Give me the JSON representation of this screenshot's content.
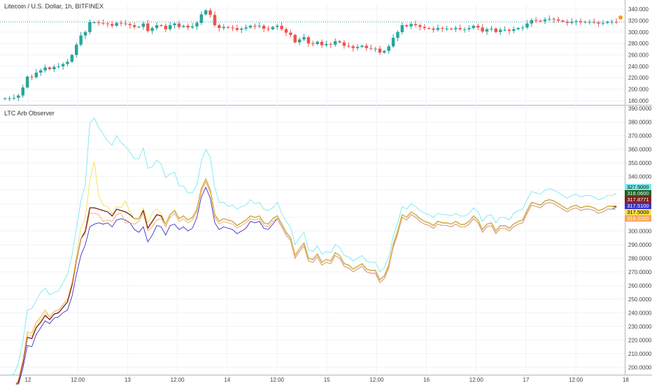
{
  "top_title": "Litecoin / U.S. Dollar, 1h, BITFINEX",
  "indicator_title": "LTC Arb Observer",
  "colors": {
    "up": "#26a69a",
    "down": "#ef5350",
    "bg": "#ffffff",
    "grid": "#f0f3fa",
    "axis_text": "#444444",
    "dot": "#ff9800"
  },
  "chart_data": [
    {
      "type": "candlestick",
      "title": "Litecoin / U.S. Dollar, 1h, BITFINEX",
      "ylim": [
        175,
        350
      ],
      "y_ticks": [
        "340.000",
        "320.000",
        "300.000",
        "280.000",
        "260.000",
        "240.000",
        "220.000",
        "200.000",
        "180.000"
      ],
      "price_line": 317.5,
      "close": [
        184,
        184,
        185,
        189,
        203,
        222,
        221,
        229,
        233,
        238,
        235,
        239,
        240,
        244,
        248,
        260,
        278,
        294,
        300,
        317,
        317,
        316,
        315,
        314,
        311,
        316,
        315,
        314,
        312,
        309,
        309,
        315,
        302,
        307,
        312,
        311,
        305,
        312,
        315,
        309,
        311,
        308,
        310,
        316,
        331,
        338,
        330,
        312,
        307,
        309,
        308,
        307,
        304,
        306,
        308,
        311,
        310,
        311,
        306,
        305,
        309,
        311,
        305,
        299,
        295,
        282,
        287,
        291,
        280,
        279,
        283,
        277,
        279,
        278,
        284,
        282,
        276,
        275,
        272,
        274,
        276,
        272,
        271,
        271,
        264,
        267,
        275,
        290,
        300,
        312,
        310,
        314,
        312,
        309,
        307,
        306,
        304,
        307,
        306,
        306,
        305,
        307,
        305,
        305,
        307,
        311,
        308,
        301,
        305,
        306,
        300,
        304,
        304,
        302,
        305,
        307,
        308,
        315,
        321,
        320,
        319,
        322,
        323,
        322,
        320,
        318,
        316,
        318,
        319,
        317,
        318,
        318,
        317,
        315,
        316,
        318,
        318,
        317.5
      ]
    },
    {
      "type": "line",
      "title": "LTC Arb Observer",
      "ylim": [
        195,
        390
      ],
      "y_ticks": [
        "390.0000",
        "380.0000",
        "370.0000",
        "360.0000",
        "350.0000",
        "340.0000",
        "330.0000",
        "320.0000",
        "310.0000",
        "300.0000",
        "290.0000",
        "280.0000",
        "270.0000",
        "260.0000",
        "250.0000",
        "240.0000",
        "230.0000",
        "220.0000",
        "210.0000",
        "200.0000"
      ],
      "last_values": [
        "327.5000",
        "318.0600",
        "317.8771",
        "317.5100",
        "317.5000",
        "316.2200"
      ],
      "series": [
        {
          "color": "#7ce8ee",
          "offsets": [
            10,
            10,
            10,
            14,
            16,
            20,
            22,
            20,
            22,
            20,
            18,
            16,
            16,
            18,
            20,
            22,
            24,
            28,
            34,
            62,
            66,
            60,
            56,
            52,
            52,
            54,
            50,
            48,
            46,
            44,
            44,
            46,
            44,
            40,
            40,
            38,
            34,
            30,
            28,
            24,
            22,
            20,
            18,
            18,
            20,
            22,
            24,
            20,
            14,
            12,
            10,
            12,
            12,
            12,
            11,
            12,
            10,
            10,
            10,
            10,
            8,
            10,
            8,
            8,
            8,
            8,
            8,
            8,
            6,
            6,
            6,
            6,
            6,
            6,
            6,
            6,
            6,
            6,
            6,
            6,
            6,
            6,
            6,
            6,
            6,
            6,
            6,
            6,
            6,
            6,
            6,
            6,
            6,
            6,
            6,
            6,
            6,
            6,
            6,
            6,
            6,
            6,
            6,
            6,
            6,
            6,
            6,
            6,
            6,
            6,
            6,
            6,
            6,
            6,
            8,
            8,
            8,
            8,
            8,
            8,
            8,
            8,
            8,
            8,
            8,
            8,
            8,
            8,
            8,
            8,
            8,
            8,
            8,
            8,
            8,
            8,
            8,
            10
          ]
        },
        {
          "color": "#1e5e1e",
          "offsets": [
            0,
            0,
            0,
            0,
            0,
            0,
            0,
            0,
            0,
            0,
            0,
            0,
            0,
            0,
            0,
            0,
            0,
            0,
            0,
            0,
            0,
            0,
            0,
            0,
            0,
            0,
            0,
            0,
            0,
            0,
            0,
            0,
            0,
            0,
            0,
            0,
            0,
            0,
            0,
            0,
            0,
            0,
            0,
            0,
            0,
            0,
            0,
            0,
            0,
            0,
            0,
            0,
            0,
            0,
            0,
            0,
            0,
            0,
            0,
            0,
            0,
            0,
            0,
            0,
            0,
            0,
            0,
            0,
            0,
            0,
            0,
            0,
            0,
            0,
            0,
            0,
            0,
            0,
            0,
            0,
            0,
            0,
            0,
            0,
            0,
            0,
            0,
            0,
            0,
            0,
            0,
            0,
            0,
            0,
            0,
            0,
            0,
            0,
            0,
            0,
            0,
            0,
            0,
            0,
            0,
            0,
            0,
            0,
            0,
            0,
            0,
            0,
            0,
            0,
            0,
            0,
            0,
            0,
            0,
            0,
            0,
            0,
            0,
            0,
            0,
            0,
            0,
            0,
            0,
            0,
            0,
            0,
            0,
            0,
            0,
            0,
            0,
            0.6
          ]
        },
        {
          "color": "#8a1c1c",
          "offsets": [
            0,
            0,
            0,
            0,
            0,
            0,
            0,
            0,
            0,
            0,
            0,
            0,
            0,
            0,
            0,
            0,
            0,
            0,
            0,
            0,
            0,
            0,
            0,
            0,
            0,
            0,
            0,
            0,
            0,
            0,
            0,
            0,
            0,
            0,
            0,
            0,
            0,
            0,
            0,
            0,
            0,
            0,
            0,
            0,
            0,
            0,
            0,
            0,
            0,
            0,
            0,
            0,
            0,
            0,
            0,
            0,
            0,
            0,
            0,
            0,
            0,
            0,
            0,
            0,
            0,
            0,
            0,
            0,
            0,
            0,
            0,
            0,
            0,
            0,
            0,
            0,
            0,
            0,
            0,
            0,
            0,
            0,
            0,
            0,
            0,
            0,
            0,
            0,
            0,
            0,
            0,
            0,
            0,
            0,
            0,
            0,
            0,
            0,
            0,
            0,
            0,
            0,
            0,
            0,
            0,
            0,
            0,
            0,
            0,
            0,
            0,
            0,
            0,
            0,
            0,
            0,
            0,
            0,
            0,
            0,
            0,
            0,
            0,
            0,
            0,
            0,
            0,
            0,
            0,
            0,
            0,
            0,
            0,
            0,
            0,
            0,
            0,
            0.4
          ]
        },
        {
          "color": "#3b2fc9",
          "offsets": [
            0,
            0,
            0,
            -2,
            -4,
            -6,
            -6,
            -5,
            -4,
            -4,
            -3,
            -3,
            -3,
            -4,
            -6,
            -8,
            -10,
            -12,
            -10,
            -14,
            -12,
            -10,
            -10,
            -8,
            -8,
            -8,
            -6,
            -6,
            -6,
            -8,
            -10,
            -12,
            -10,
            -10,
            -8,
            -8,
            -8,
            -8,
            -10,
            -8,
            -8,
            -8,
            -8,
            -6,
            -6,
            -6,
            -6,
            -6,
            -6,
            -6,
            -6,
            -6,
            -6,
            -6,
            -6,
            -4,
            -4,
            -4,
            -4,
            -4,
            -4,
            -2,
            -2,
            -2,
            -2,
            -2,
            -2,
            -2,
            -2,
            -2,
            -2,
            -2,
            -2,
            -2,
            -2,
            -2,
            -2,
            -2,
            -2,
            -2,
            -2,
            -2,
            -2,
            -2,
            -2,
            -2,
            -2,
            -2,
            -2,
            -2,
            -2,
            -2,
            -2,
            -2,
            -2,
            -2,
            -2,
            -2,
            -2,
            -2,
            -2,
            -2,
            -2,
            -2,
            -2,
            -2,
            -2,
            -2,
            -2,
            -2,
            -2,
            -2,
            -2,
            -2,
            -2,
            -2,
            -2,
            -2,
            -2,
            -2,
            -2,
            -2,
            -2,
            -2,
            -2,
            -2,
            -2,
            -2,
            -2,
            -2,
            -2,
            -2,
            -2,
            -2,
            -2,
            -2,
            -2,
            0
          ]
        },
        {
          "color": "#f5e04a",
          "offsets": [
            0,
            0,
            0,
            2,
            2,
            2,
            2,
            2,
            2,
            2,
            2,
            2,
            2,
            2,
            2,
            2,
            4,
            8,
            10,
            20,
            34,
            10,
            4,
            4,
            2,
            2,
            2,
            8,
            2,
            0,
            0,
            2,
            4,
            6,
            4,
            2,
            0,
            0,
            0,
            0,
            0,
            0,
            0,
            0,
            0,
            0,
            0,
            0,
            0,
            0,
            0,
            0,
            0,
            0,
            0,
            0,
            0,
            0,
            0,
            0,
            0,
            0,
            0,
            0,
            0,
            0,
            0,
            0,
            0,
            0,
            0,
            0,
            0,
            0,
            0,
            0,
            0,
            0,
            0,
            0,
            0,
            0,
            0,
            0,
            0,
            0,
            0,
            0,
            0,
            0,
            0,
            0,
            0,
            0,
            0,
            0,
            0,
            0,
            0,
            0,
            0,
            0,
            0,
            0,
            0,
            0,
            0,
            0,
            0,
            0,
            0,
            0,
            0,
            0,
            0,
            0,
            0,
            0,
            0,
            0,
            0,
            0,
            0,
            0,
            0,
            0,
            0,
            0,
            0,
            0,
            0,
            0,
            0,
            0,
            0,
            0,
            0,
            -0.5
          ]
        },
        {
          "color": "#f5a65b",
          "offsets": [
            0,
            0,
            0,
            2,
            2,
            4,
            4,
            4,
            4,
            4,
            2,
            2,
            2,
            2,
            2,
            2,
            0,
            0,
            -2,
            -4,
            -4,
            -4,
            -8,
            -6,
            -4,
            -4,
            -2,
            -8,
            -6,
            -4,
            -2,
            -2,
            -2,
            -4,
            -4,
            -2,
            -2,
            -2,
            -2,
            -2,
            -2,
            -2,
            -2,
            -2,
            -2,
            -2,
            -2,
            -2,
            -2,
            -2,
            -2,
            -2,
            -2,
            -2,
            -2,
            -2,
            -2,
            -2,
            -2,
            -2,
            -2,
            -2,
            -2,
            -2,
            -2,
            -2,
            -2,
            -2,
            -2,
            -2,
            -2,
            -2,
            -2,
            -2,
            -2,
            -2,
            -2,
            -2,
            -2,
            -2,
            -2,
            -2,
            -2,
            -2,
            -2,
            -2,
            -2,
            -2,
            -2,
            -2,
            -2,
            -2,
            -2,
            -2,
            -2,
            -2,
            -2,
            -2,
            -2,
            -2,
            -2,
            -2,
            -2,
            -2,
            -2,
            -2,
            -2,
            -2,
            -2,
            -2,
            -2,
            -2,
            -2,
            -2,
            -2,
            -2,
            -2,
            -2,
            -2,
            -2,
            -2,
            -2,
            -2,
            -2,
            -2,
            -2,
            -2,
            -2,
            -2,
            -2,
            -2,
            -2,
            -2,
            -2,
            -2,
            -2,
            -2,
            -1.8
          ]
        }
      ]
    }
  ],
  "x_axis": {
    "labels": [
      "12",
      "12:00",
      "13",
      "12:00",
      "14",
      "12:00",
      "15",
      "12:00",
      "16",
      "12:00",
      "17",
      "12:00",
      "18"
    ]
  }
}
